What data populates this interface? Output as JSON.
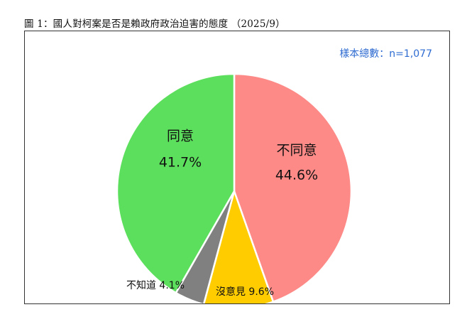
{
  "figure": {
    "title": "圖 1：國人對柯案是否是賴政府政治迫害的態度 （2025/9）",
    "sample_note": "樣本總數：n=1,077"
  },
  "colors": {
    "agree": "#5cdf5c",
    "disagree": "#fd8a87",
    "no_opinion": "#ffcc00",
    "dont_know": "#808080",
    "note_text": "#2e6bd1"
  },
  "chart_data": {
    "type": "pie",
    "title": "國人對柯案是否是賴政府政治迫害的態度",
    "start_angle_deg": 0,
    "direction": "clockwise",
    "slices": [
      {
        "label": "不同意",
        "value": 44.6,
        "display": "44.6%",
        "color": "#fd8a87",
        "label_style": "inside"
      },
      {
        "label": "沒意見",
        "value": 9.6,
        "display": "沒意見 9.6%",
        "color": "#ffcc00",
        "label_style": "outside"
      },
      {
        "label": "不知道",
        "value": 4.1,
        "display": "不知道 4.1%",
        "color": "#808080",
        "label_style": "outside"
      },
      {
        "label": "同意",
        "value": 41.7,
        "display": "41.7%",
        "color": "#5cdf5c",
        "label_style": "inside"
      }
    ],
    "legend": "none"
  }
}
